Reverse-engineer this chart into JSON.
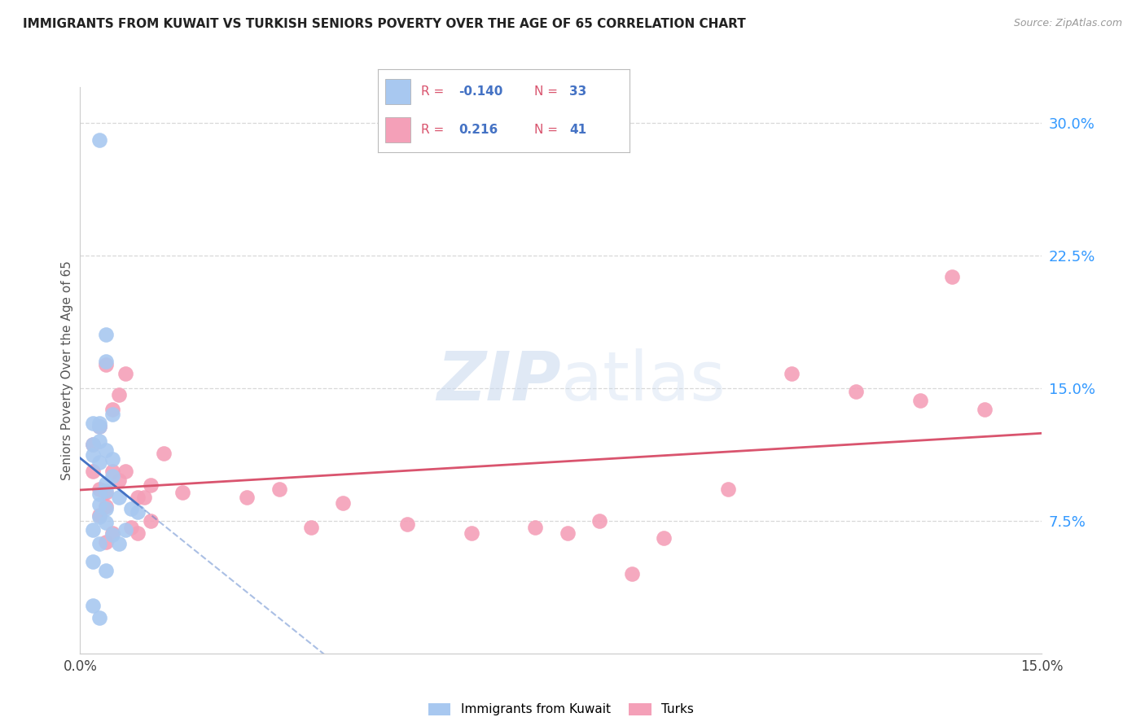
{
  "title": "IMMIGRANTS FROM KUWAIT VS TURKISH SENIORS POVERTY OVER THE AGE OF 65 CORRELATION CHART",
  "source": "Source: ZipAtlas.com",
  "ylabel": "Seniors Poverty Over the Age of 65",
  "xlim": [
    0.0,
    0.15
  ],
  "ylim": [
    0.0,
    0.32
  ],
  "right_ytick_labels": [
    "30.0%",
    "22.5%",
    "15.0%",
    "7.5%"
  ],
  "right_yticks": [
    0.3,
    0.225,
    0.15,
    0.075
  ],
  "bottom_xtick_labels": [
    "0.0%",
    "",
    "",
    "",
    "",
    "15.0%"
  ],
  "bottom_xticks": [
    0.0,
    0.03,
    0.06,
    0.09,
    0.12,
    0.15
  ],
  "series1_name": "Immigrants from Kuwait",
  "series1_color": "#a8c8f0",
  "series2_name": "Turks",
  "series2_color": "#f4a0b8",
  "kuwait_x": [
    0.002,
    0.004,
    0.003,
    0.005,
    0.002,
    0.003,
    0.004,
    0.003,
    0.002,
    0.003,
    0.004,
    0.005,
    0.006,
    0.004,
    0.003,
    0.005,
    0.003,
    0.002,
    0.004,
    0.003,
    0.002,
    0.007,
    0.004,
    0.009,
    0.005,
    0.006,
    0.008,
    0.003,
    0.004,
    0.003,
    0.004,
    0.002,
    0.003
  ],
  "kuwait_y": [
    0.13,
    0.165,
    0.13,
    0.135,
    0.112,
    0.12,
    0.115,
    0.108,
    0.118,
    0.128,
    0.096,
    0.1,
    0.088,
    0.092,
    0.09,
    0.11,
    0.077,
    0.07,
    0.074,
    0.062,
    0.052,
    0.07,
    0.047,
    0.08,
    0.067,
    0.062,
    0.082,
    0.29,
    0.18,
    0.084,
    0.082,
    0.027,
    0.02
  ],
  "turks_x": [
    0.002,
    0.003,
    0.004,
    0.002,
    0.003,
    0.005,
    0.004,
    0.006,
    0.007,
    0.005,
    0.004,
    0.003,
    0.006,
    0.009,
    0.008,
    0.011,
    0.01,
    0.005,
    0.004,
    0.007,
    0.013,
    0.016,
    0.011,
    0.009,
    0.031,
    0.026,
    0.036,
    0.041,
    0.061,
    0.051,
    0.071,
    0.081,
    0.091,
    0.101,
    0.111,
    0.076,
    0.086,
    0.121,
    0.131,
    0.141,
    0.136
  ],
  "turks_y": [
    0.118,
    0.128,
    0.163,
    0.103,
    0.093,
    0.138,
    0.083,
    0.146,
    0.158,
    0.103,
    0.091,
    0.078,
    0.098,
    0.088,
    0.071,
    0.095,
    0.088,
    0.068,
    0.063,
    0.103,
    0.113,
    0.091,
    0.075,
    0.068,
    0.093,
    0.088,
    0.071,
    0.085,
    0.068,
    0.073,
    0.071,
    0.075,
    0.065,
    0.093,
    0.158,
    0.068,
    0.045,
    0.148,
    0.143,
    0.138,
    0.213
  ],
  "background_color": "#ffffff",
  "grid_color": "#d8d8d8",
  "trend1_color": "#4472c4",
  "trend2_color": "#d9546e",
  "legend_r_color": "#d9546e",
  "legend_n_color": "#4472c4"
}
